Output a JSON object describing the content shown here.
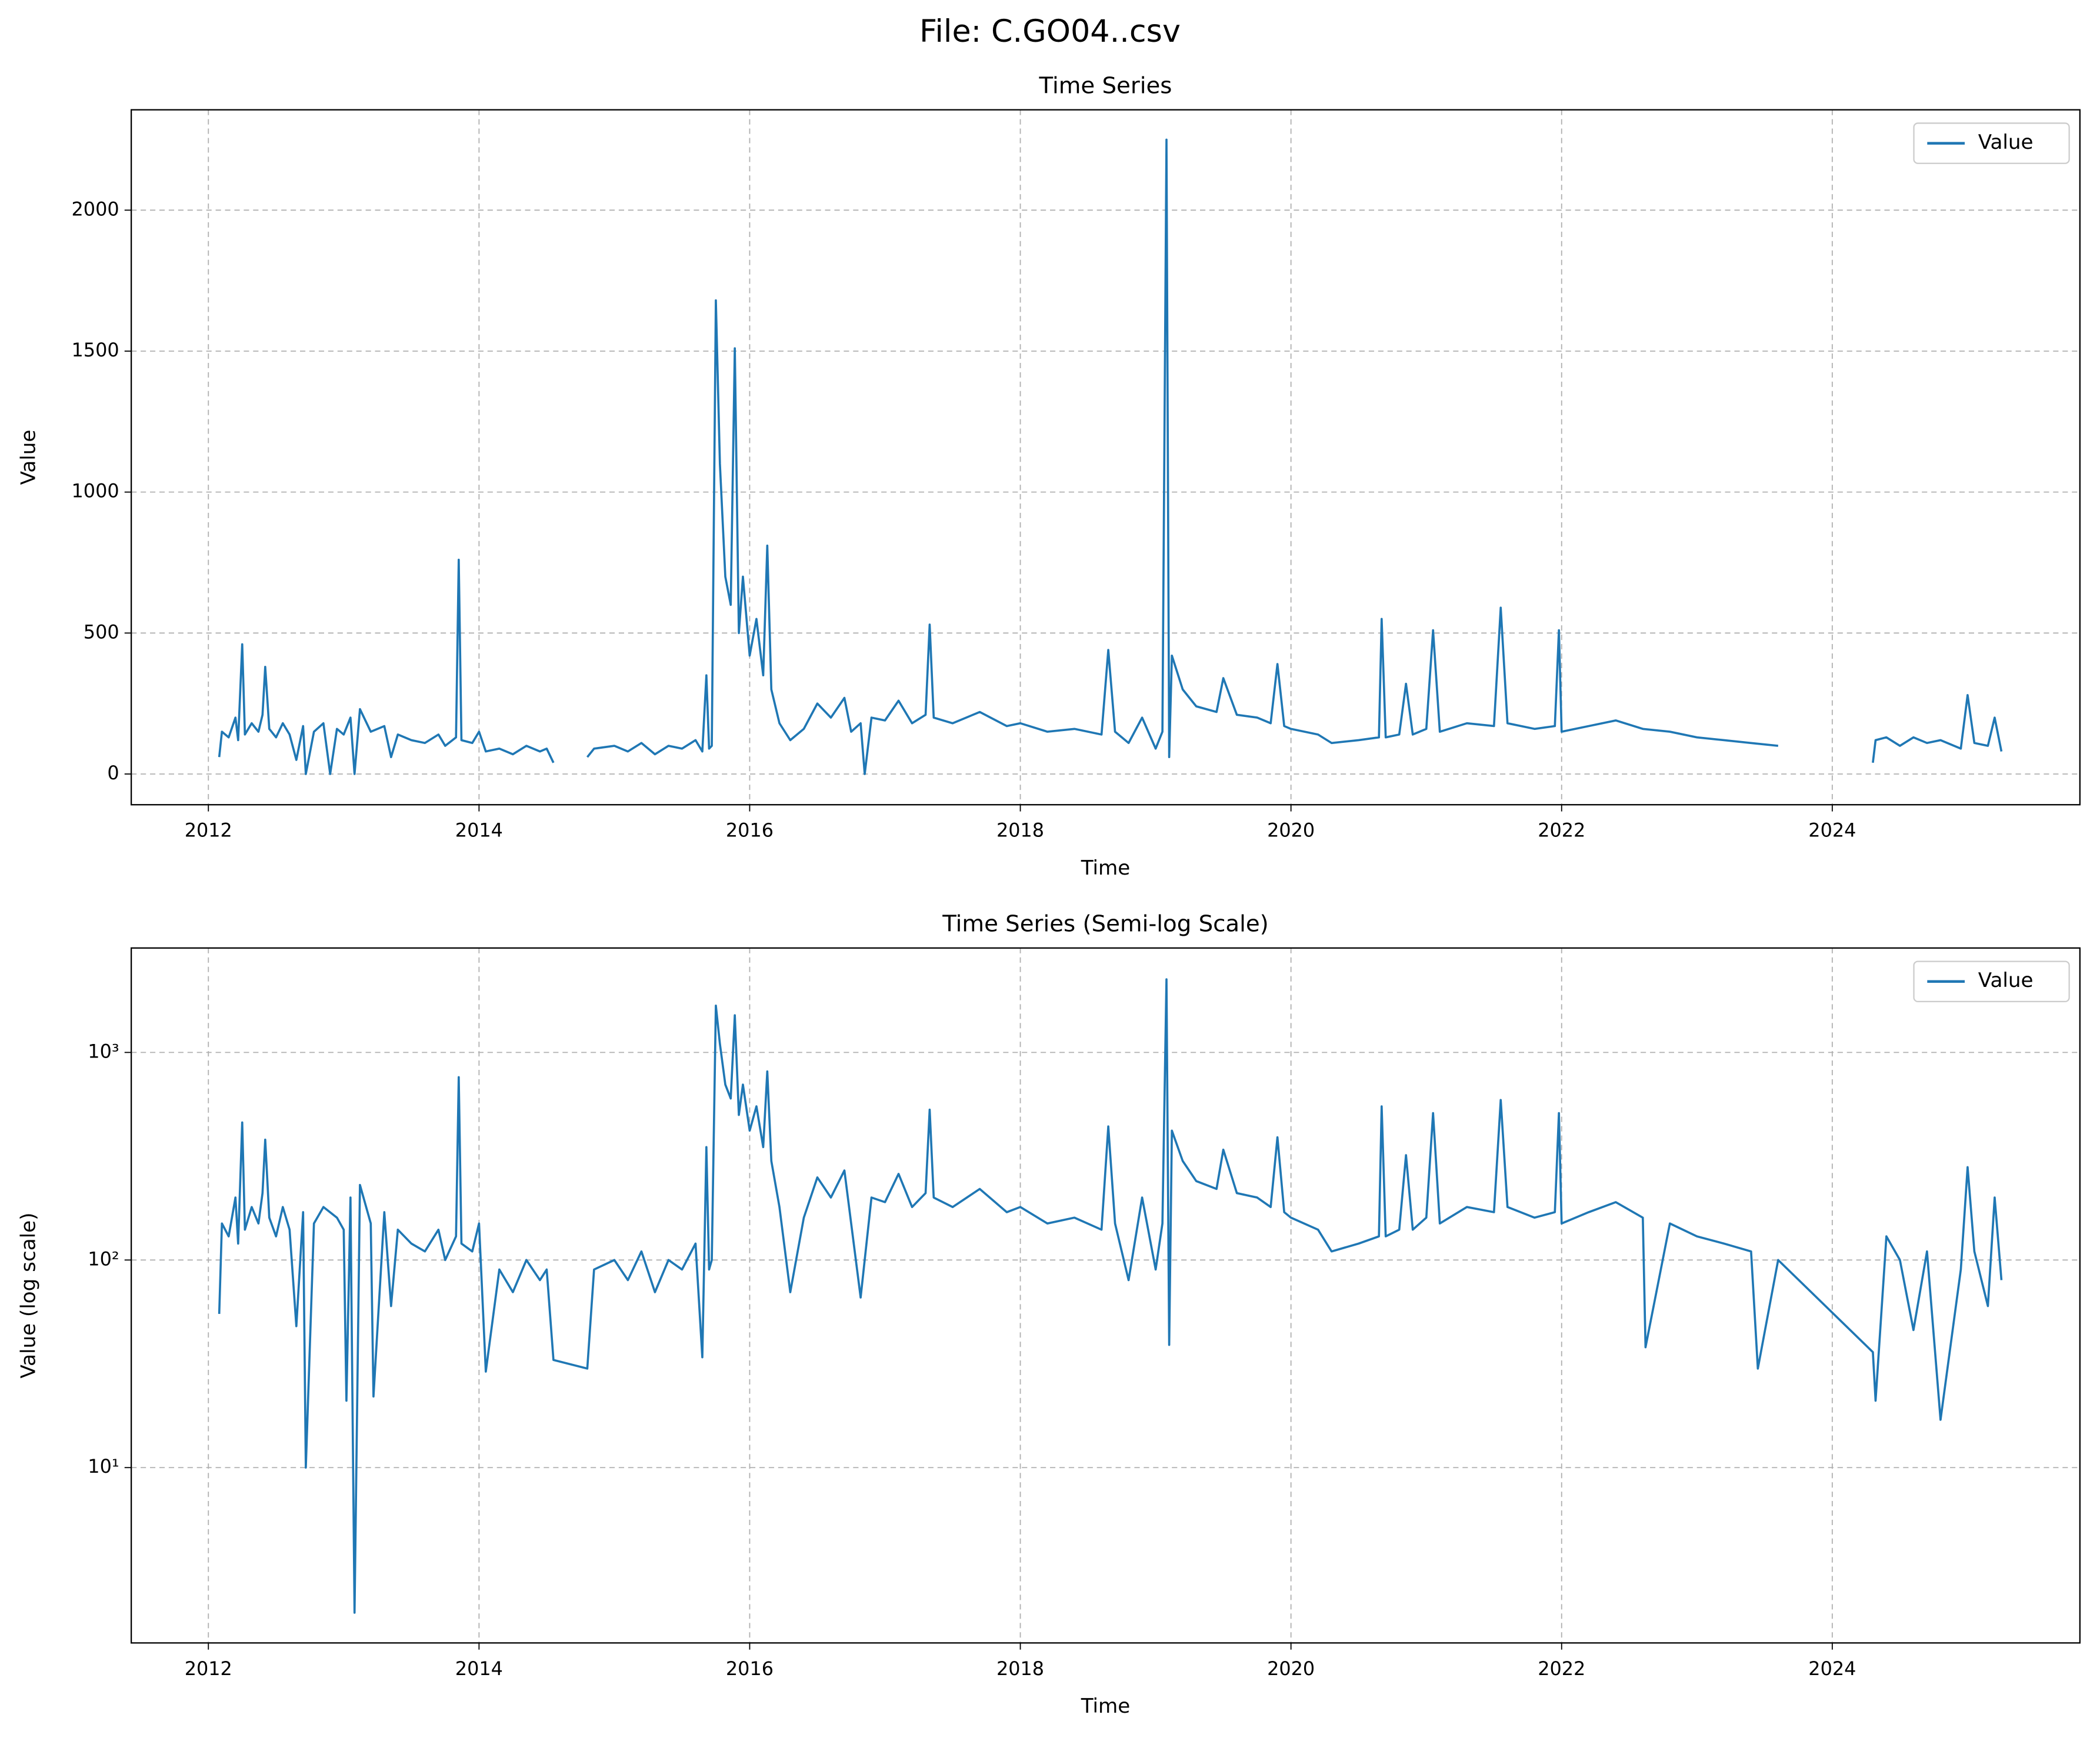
{
  "title": "File: C.GO04..csv",
  "chart_data": [
    {
      "type": "line",
      "title": "Time Series",
      "xlabel": "Time",
      "ylabel": "Value",
      "log": false,
      "grid": true,
      "legend": "upper right",
      "xlim": [
        2011.43,
        2025.83
      ],
      "xticks": [
        2012,
        2014,
        2016,
        2018,
        2020,
        2022,
        2024
      ],
      "ylim": [
        -109,
        2356
      ],
      "yticks": [
        0,
        500,
        1000,
        1500,
        2000
      ],
      "x": [
        2012.08,
        2012.1,
        2012.15,
        2012.2,
        2012.22,
        2012.25,
        2012.27,
        2012.32,
        2012.37,
        2012.4,
        2012.42,
        2012.45,
        2012.5,
        2012.55,
        2012.6,
        2012.65,
        2012.7,
        2012.72,
        2012.78,
        2012.85,
        2012.9,
        2012.95,
        2013.0,
        2013.05,
        2013.08,
        2013.12,
        2013.2,
        2013.3,
        2013.35,
        2013.4,
        2013.5,
        2013.6,
        2013.7,
        2013.75,
        2013.83,
        2013.85,
        2013.87,
        2013.95,
        2014.0,
        2014.05,
        2014.15,
        2014.25,
        2014.35,
        2014.45,
        2014.5,
        2014.55,
        2014.65,
        2014.8,
        2014.85,
        2015.0,
        2015.1,
        2015.2,
        2015.3,
        2015.4,
        2015.5,
        2015.6,
        2015.65,
        2015.68,
        2015.7,
        2015.72,
        2015.75,
        2015.78,
        2015.82,
        2015.86,
        2015.89,
        2015.92,
        2015.95,
        2016.0,
        2016.05,
        2016.1,
        2016.13,
        2016.16,
        2016.22,
        2016.3,
        2016.4,
        2016.5,
        2016.6,
        2016.7,
        2016.75,
        2016.82,
        2016.85,
        2016.9,
        2017.0,
        2017.1,
        2017.2,
        2017.3,
        2017.33,
        2017.36,
        2017.5,
        2017.7,
        2017.9,
        2018.0,
        2018.2,
        2018.4,
        2018.6,
        2018.65,
        2018.7,
        2018.8,
        2018.9,
        2019.0,
        2019.05,
        2019.08,
        2019.1,
        2019.12,
        2019.2,
        2019.3,
        2019.45,
        2019.5,
        2019.6,
        2019.75,
        2019.85,
        2019.9,
        2019.95,
        2020.0,
        2020.2,
        2020.3,
        2020.5,
        2020.65,
        2020.67,
        2020.7,
        2020.8,
        2020.85,
        2020.9,
        2021.0,
        2021.05,
        2021.1,
        2021.3,
        2021.5,
        2021.55,
        2021.6,
        2021.8,
        2021.95,
        2021.98,
        2022.0,
        2022.2,
        2022.4,
        2022.6,
        2022.8,
        2023.0,
        2023.2,
        2023.4,
        2023.6,
        2023.9,
        2024.3,
        2024.32,
        2024.4,
        2024.5,
        2024.6,
        2024.7,
        2024.8,
        2024.95,
        2025.0,
        2025.05,
        2025.15,
        2025.2,
        2025.25
      ],
      "series": [
        {
          "name": "Value",
          "color": "#1f77b4",
          "values": [
            60,
            150,
            130,
            200,
            120,
            460,
            140,
            180,
            150,
            210,
            380,
            160,
            130,
            180,
            140,
            50,
            170,
            0,
            150,
            180,
            0,
            160,
            140,
            200,
            0,
            230,
            150,
            170,
            60,
            140,
            120,
            110,
            140,
            100,
            130,
            760,
            120,
            110,
            150,
            80,
            90,
            70,
            100,
            80,
            90,
            40,
            null,
            60,
            90,
            100,
            80,
            110,
            70,
            100,
            90,
            120,
            80,
            350,
            90,
            100,
            1680,
            1100,
            700,
            600,
            1510,
            500,
            700,
            420,
            550,
            350,
            810,
            300,
            180,
            120,
            160,
            250,
            200,
            270,
            150,
            180,
            0,
            200,
            190,
            260,
            180,
            210,
            530,
            200,
            180,
            220,
            170,
            180,
            150,
            160,
            140,
            440,
            150,
            110,
            200,
            90,
            150,
            2250,
            60,
            420,
            300,
            240,
            220,
            340,
            210,
            200,
            180,
            390,
            170,
            160,
            140,
            110,
            120,
            130,
            550,
            130,
            140,
            320,
            140,
            160,
            510,
            150,
            180,
            170,
            590,
            180,
            160,
            170,
            510,
            150,
            170,
            190,
            160,
            150,
            130,
            120,
            110,
            100,
            null,
            40,
            120,
            130,
            100,
            130,
            110,
            120,
            90,
            280,
            110,
            100,
            200,
            80
          ]
        }
      ]
    },
    {
      "type": "line",
      "title": "Time Series (Semi-log Scale)",
      "xlabel": "Time",
      "ylabel": "Value (log scale)",
      "log": true,
      "grid": true,
      "legend": "upper right",
      "xlim": [
        2011.43,
        2025.83
      ],
      "xticks": [
        2012,
        2014,
        2016,
        2018,
        2020,
        2022,
        2024
      ],
      "ylim": [
        1.43,
        3185
      ],
      "yticks": [
        {
          "value": 10,
          "label": "10¹"
        },
        {
          "value": 100,
          "label": "10²"
        },
        {
          "value": 1000,
          "label": "10³"
        }
      ],
      "x": [
        2012.08,
        2012.1,
        2012.15,
        2012.2,
        2012.22,
        2012.25,
        2012.27,
        2012.32,
        2012.37,
        2012.4,
        2012.42,
        2012.45,
        2012.5,
        2012.55,
        2012.6,
        2012.65,
        2012.7,
        2012.72,
        2012.78,
        2012.85,
        2012.95,
        2013.0,
        2013.02,
        2013.05,
        2013.08,
        2013.12,
        2013.2,
        2013.22,
        2013.3,
        2013.35,
        2013.4,
        2013.5,
        2013.6,
        2013.7,
        2013.75,
        2013.83,
        2013.85,
        2013.87,
        2013.95,
        2014.0,
        2014.05,
        2014.15,
        2014.25,
        2014.35,
        2014.45,
        2014.5,
        2014.55,
        2014.8,
        2014.85,
        2015.0,
        2015.1,
        2015.2,
        2015.3,
        2015.4,
        2015.5,
        2015.6,
        2015.65,
        2015.68,
        2015.7,
        2015.72,
        2015.75,
        2015.78,
        2015.82,
        2015.86,
        2015.89,
        2015.92,
        2015.95,
        2016.0,
        2016.05,
        2016.1,
        2016.13,
        2016.16,
        2016.22,
        2016.3,
        2016.4,
        2016.5,
        2016.6,
        2016.7,
        2016.75,
        2016.82,
        2016.9,
        2017.0,
        2017.1,
        2017.2,
        2017.3,
        2017.33,
        2017.36,
        2017.5,
        2017.7,
        2017.9,
        2018.0,
        2018.2,
        2018.4,
        2018.6,
        2018.65,
        2018.7,
        2018.8,
        2018.9,
        2019.0,
        2019.05,
        2019.08,
        2019.1,
        2019.12,
        2019.2,
        2019.3,
        2019.45,
        2019.5,
        2019.6,
        2019.75,
        2019.85,
        2019.9,
        2019.95,
        2020.0,
        2020.2,
        2020.3,
        2020.5,
        2020.65,
        2020.67,
        2020.7,
        2020.8,
        2020.85,
        2020.9,
        2021.0,
        2021.05,
        2021.1,
        2021.3,
        2021.5,
        2021.55,
        2021.6,
        2021.8,
        2021.95,
        2021.98,
        2022.0,
        2022.2,
        2022.4,
        2022.6,
        2022.62,
        2022.8,
        2023.0,
        2023.2,
        2023.4,
        2023.45,
        2023.6,
        2024.3,
        2024.32,
        2024.4,
        2024.5,
        2024.6,
        2024.7,
        2024.8,
        2024.95,
        2025.0,
        2025.05,
        2025.15,
        2025.2,
        2025.25
      ],
      "series": [
        {
          "name": "Value",
          "color": "#1f77b4",
          "values": [
            55,
            150,
            130,
            200,
            120,
            460,
            140,
            180,
            150,
            210,
            380,
            160,
            130,
            180,
            140,
            48,
            170,
            10,
            150,
            180,
            160,
            140,
            21,
            200,
            2,
            230,
            150,
            22,
            170,
            60,
            140,
            120,
            110,
            140,
            100,
            130,
            760,
            120,
            110,
            150,
            29,
            90,
            70,
            100,
            80,
            90,
            33,
            30,
            90,
            100,
            80,
            110,
            70,
            100,
            90,
            120,
            34,
            350,
            90,
            100,
            1680,
            1100,
            700,
            600,
            1510,
            500,
            700,
            420,
            550,
            350,
            810,
            300,
            180,
            70,
            160,
            250,
            200,
            270,
            150,
            66,
            200,
            190,
            260,
            180,
            210,
            530,
            200,
            180,
            220,
            170,
            180,
            150,
            160,
            140,
            440,
            150,
            80,
            200,
            90,
            150,
            2250,
            39,
            420,
            300,
            240,
            220,
            340,
            210,
            200,
            180,
            390,
            170,
            160,
            140,
            110,
            120,
            130,
            550,
            130,
            140,
            320,
            140,
            160,
            510,
            150,
            180,
            170,
            590,
            180,
            160,
            170,
            510,
            150,
            170,
            190,
            160,
            38,
            150,
            130,
            120,
            110,
            30,
            100,
            36,
            21,
            130,
            100,
            46,
            110,
            17,
            90,
            280,
            110,
            60,
            200,
            80
          ]
        }
      ]
    }
  ]
}
